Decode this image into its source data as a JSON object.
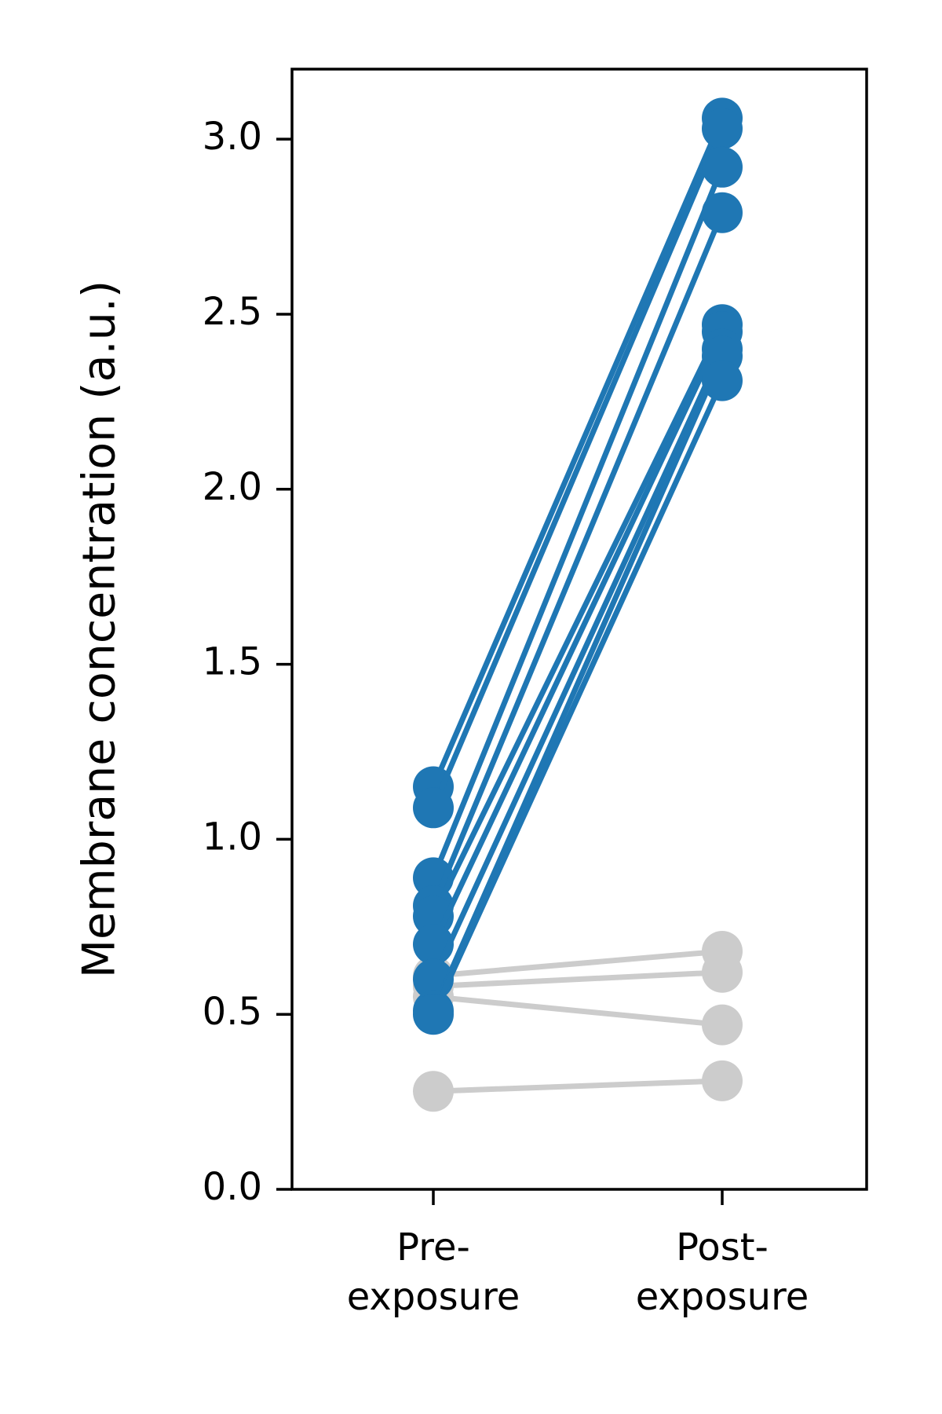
{
  "chart_data": {
    "type": "line",
    "title": "",
    "xlabel": "",
    "ylabel": "Membrane concentration (a.u.)",
    "categories": [
      "Pre-\nexposure",
      "Post-\nexposure"
    ],
    "ylim": [
      0,
      3.2
    ],
    "yticks": [
      "0.0",
      "0.5",
      "1.0",
      "1.5",
      "2.0",
      "2.5",
      "3.0"
    ],
    "grid": false,
    "legend": "none",
    "colors": {
      "responder": "#1f77b4",
      "nonresponder": "#cccccc"
    },
    "series": [
      {
        "group": "nonresponder",
        "values": [
          0.28,
          0.31
        ]
      },
      {
        "group": "nonresponder",
        "values": [
          0.55,
          0.47
        ]
      },
      {
        "group": "nonresponder",
        "values": [
          0.58,
          0.62
        ]
      },
      {
        "group": "nonresponder",
        "values": [
          0.61,
          0.68
        ]
      },
      {
        "group": "responder",
        "values": [
          1.15,
          3.06
        ]
      },
      {
        "group": "responder",
        "values": [
          1.09,
          3.03
        ]
      },
      {
        "group": "responder",
        "values": [
          0.89,
          2.92
        ]
      },
      {
        "group": "responder",
        "values": [
          0.81,
          2.79
        ]
      },
      {
        "group": "responder",
        "values": [
          0.78,
          2.47
        ]
      },
      {
        "group": "responder",
        "values": [
          0.7,
          2.45
        ]
      },
      {
        "group": "responder",
        "values": [
          0.6,
          2.4
        ]
      },
      {
        "group": "responder",
        "values": [
          0.51,
          2.38
        ]
      },
      {
        "group": "responder",
        "values": [
          0.5,
          2.31
        ]
      }
    ]
  }
}
